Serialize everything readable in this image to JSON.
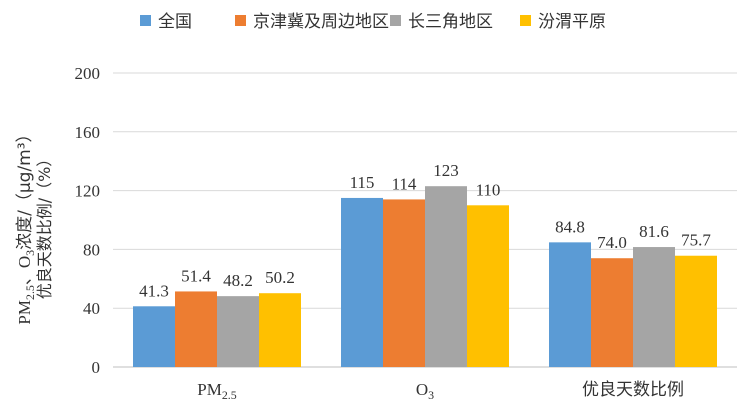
{
  "chart_data": {
    "type": "bar",
    "title": "",
    "xlabel": "",
    "ylabel_line1": "PM2.5、O3浓度/（μg/m³）",
    "ylabel_line2": "优良天数比例/（%）",
    "categories": [
      "PM2.5",
      "O3",
      "优良天数比例"
    ],
    "series": [
      {
        "name": "全国",
        "color": "#5B9BD5",
        "values": [
          41.3,
          115,
          84.8
        ],
        "labels": [
          "41.3",
          "115",
          "84.8"
        ]
      },
      {
        "name": "京津冀及周边地区",
        "color": "#ED7D31",
        "values": [
          51.4,
          114,
          74.0
        ],
        "labels": [
          "51.4",
          "114",
          "74.0"
        ]
      },
      {
        "name": "长三角地区",
        "color": "#A5A5A5",
        "values": [
          48.2,
          123,
          81.6
        ],
        "labels": [
          "48.2",
          "123",
          "81.6"
        ]
      },
      {
        "name": "汾渭平原",
        "color": "#FFC000",
        "values": [
          50.2,
          110,
          75.7
        ],
        "labels": [
          "50.2",
          "110",
          "75.7"
        ]
      }
    ],
    "ylim": [
      0,
      200
    ],
    "yticks": [
      0,
      40,
      80,
      120,
      160,
      200
    ],
    "grid": true,
    "legend_position": "top"
  }
}
